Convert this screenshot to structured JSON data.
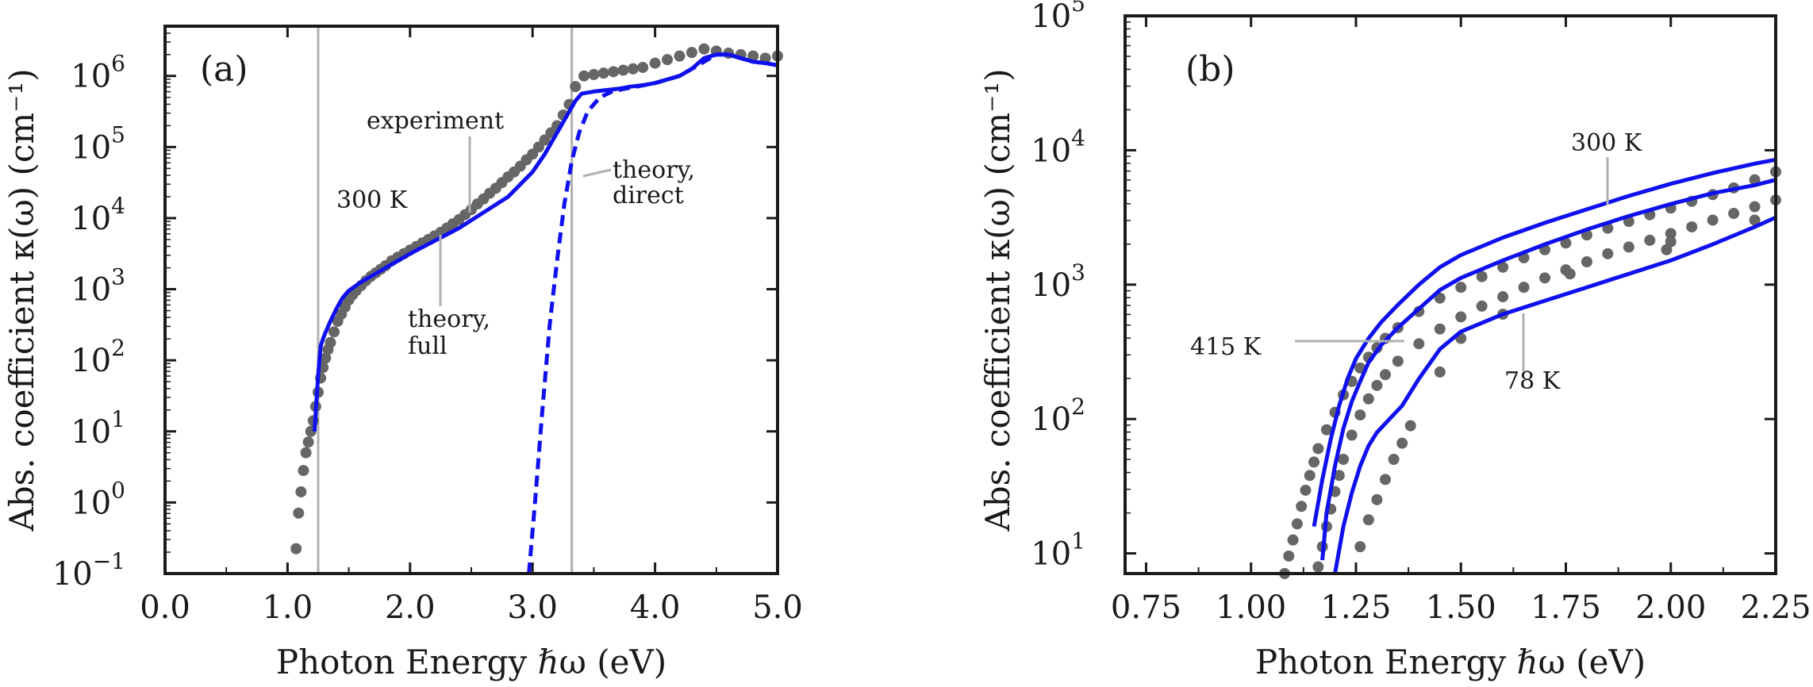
{
  "chart_data": [
    {
      "panel": "(a)",
      "type": "line",
      "xlabel": "Photon Energy ℏω (eV)",
      "ylabel": "Abs. coefficient κ(ω) (cm⁻¹)",
      "xlim": [
        0.0,
        5.0
      ],
      "ylim_log10": [
        -1,
        6.7
      ],
      "x_ticks": [
        "0.0",
        "1.0",
        "2.0",
        "3.0",
        "4.0",
        "5.0"
      ],
      "x_tick_values": [
        0,
        1,
        2,
        3,
        4,
        5
      ],
      "y_tick_exponents": [
        -1,
        0,
        1,
        2,
        3,
        4,
        5,
        6
      ],
      "vlines": [
        1.25,
        3.32
      ],
      "series": [
        {
          "name": "experiment",
          "style": "markers",
          "color": "#666666",
          "x": [
            1.07,
            1.09,
            1.11,
            1.13,
            1.15,
            1.17,
            1.19,
            1.21,
            1.23,
            1.25,
            1.27,
            1.29,
            1.31,
            1.33,
            1.35,
            1.38,
            1.41,
            1.44,
            1.47,
            1.5,
            1.53,
            1.56,
            1.6,
            1.64,
            1.68,
            1.72,
            1.76,
            1.8,
            1.85,
            1.9,
            1.95,
            2.0,
            2.05,
            2.1,
            2.15,
            2.2,
            2.25,
            2.3,
            2.35,
            2.4,
            2.45,
            2.5,
            2.55,
            2.6,
            2.65,
            2.7,
            2.75,
            2.8,
            2.85,
            2.9,
            2.95,
            3.0,
            3.05,
            3.1,
            3.15,
            3.2,
            3.25,
            3.3,
            3.35,
            3.42,
            3.5,
            3.58,
            3.66,
            3.74,
            3.82,
            3.9,
            4.0,
            4.1,
            4.2,
            4.3,
            4.4,
            4.5,
            4.6,
            4.7,
            4.8,
            4.9,
            5.0
          ],
          "log10_values": [
            -0.65,
            -0.15,
            0.15,
            0.45,
            0.7,
            0.85,
            1.0,
            1.15,
            1.35,
            1.55,
            1.75,
            1.9,
            2.03,
            2.15,
            2.25,
            2.4,
            2.55,
            2.65,
            2.75,
            2.85,
            2.92,
            2.98,
            3.05,
            3.12,
            3.18,
            3.23,
            3.28,
            3.33,
            3.4,
            3.45,
            3.5,
            3.55,
            3.6,
            3.65,
            3.7,
            3.75,
            3.8,
            3.86,
            3.92,
            3.98,
            4.05,
            4.12,
            4.2,
            4.27,
            4.35,
            4.42,
            4.5,
            4.58,
            4.65,
            4.73,
            4.82,
            4.9,
            5.0,
            5.1,
            5.2,
            5.3,
            5.45,
            5.6,
            5.85,
            6.0,
            6.02,
            6.04,
            6.06,
            6.08,
            6.1,
            6.12,
            6.18,
            6.23,
            6.28,
            6.33,
            6.38,
            6.35,
            6.32,
            6.3,
            6.28,
            6.25,
            6.28
          ]
        },
        {
          "name": "theory, full",
          "style": "solid",
          "color": "#1010ee",
          "x": [
            1.22,
            1.25,
            1.27,
            1.3,
            1.35,
            1.4,
            1.45,
            1.5,
            1.55,
            1.6,
            1.7,
            1.8,
            2.0,
            2.2,
            2.4,
            2.6,
            2.8,
            3.0,
            3.1,
            3.2,
            3.3,
            3.35,
            3.4,
            3.5,
            3.6,
            3.7,
            3.8,
            3.9,
            4.0,
            4.1,
            4.2,
            4.3,
            4.4,
            4.5,
            4.6,
            4.7,
            4.8,
            4.9,
            5.0
          ],
          "log10_values": [
            1.0,
            1.8,
            2.2,
            2.35,
            2.55,
            2.73,
            2.88,
            2.98,
            3.04,
            3.1,
            3.2,
            3.3,
            3.5,
            3.68,
            3.86,
            4.08,
            4.3,
            4.65,
            4.9,
            5.2,
            5.5,
            5.65,
            5.75,
            5.78,
            5.8,
            5.82,
            5.85,
            5.87,
            5.9,
            5.95,
            6.0,
            6.1,
            6.25,
            6.3,
            6.3,
            6.25,
            6.2,
            6.18,
            6.15
          ]
        },
        {
          "name": "theory, direct",
          "style": "dashed",
          "color": "#1010ee",
          "x": [
            2.97,
            3.02,
            3.08,
            3.14,
            3.2,
            3.26,
            3.32,
            3.38,
            3.45,
            3.55,
            3.65,
            3.75,
            3.85,
            4.0,
            4.1,
            4.2,
            4.3,
            4.4,
            4.5,
            4.6,
            4.7,
            4.8,
            4.9,
            5.0
          ],
          "log10_values": [
            -1.0,
            0.0,
            1.3,
            2.5,
            3.4,
            4.2,
            4.8,
            5.2,
            5.5,
            5.7,
            5.78,
            5.82,
            5.85,
            5.9,
            5.95,
            6.0,
            6.1,
            6.2,
            6.3,
            6.3,
            6.25,
            6.2,
            6.18,
            6.15
          ]
        }
      ],
      "annotations": [
        {
          "text": "experiment"
        },
        {
          "text": "300 K"
        },
        {
          "text": "theory,",
          "text2": "full"
        },
        {
          "text": "theory,",
          "text2": "direct"
        }
      ]
    },
    {
      "panel": "(b)",
      "type": "line",
      "xlabel": "Photon Energy ℏω (eV)",
      "ylabel": "Abs. coefficient κ(ω) (cm⁻¹)",
      "xlim": [
        0.7,
        2.25
      ],
      "ylim_log10": [
        0.85,
        5.0
      ],
      "x_ticks": [
        "0.75",
        "1.00",
        "1.25",
        "1.50",
        "1.75",
        "2.00",
        "2.25"
      ],
      "x_tick_values": [
        0.75,
        1.0,
        1.25,
        1.5,
        1.75,
        2.0,
        2.25
      ],
      "y_tick_exponents": [
        1,
        2,
        3,
        4,
        5
      ],
      "series": [
        {
          "name": "415 K experiment",
          "style": "markers",
          "color": "#666666",
          "x": [
            1.08,
            1.09,
            1.1,
            1.11,
            1.12,
            1.13,
            1.14,
            1.15,
            1.16,
            1.18,
            1.2,
            1.22,
            1.24,
            1.26,
            1.28,
            1.3,
            1.32,
            1.35,
            1.4,
            1.45,
            1.5,
            1.55,
            1.6,
            1.65,
            1.7,
            1.75,
            1.8,
            1.85,
            1.9,
            1.95,
            2.0,
            2.05,
            2.1,
            2.15,
            2.2,
            2.25
          ],
          "log10_values": [
            0.85,
            0.98,
            1.1,
            1.22,
            1.35,
            1.47,
            1.58,
            1.68,
            1.78,
            1.92,
            2.05,
            2.18,
            2.28,
            2.38,
            2.46,
            2.53,
            2.6,
            2.68,
            2.8,
            2.9,
            2.98,
            3.06,
            3.13,
            3.2,
            3.26,
            3.31,
            3.37,
            3.42,
            3.47,
            3.52,
            3.57,
            3.62,
            3.67,
            3.72,
            3.78,
            3.84
          ]
        },
        {
          "name": "300 K experiment",
          "style": "markers",
          "color": "#666666",
          "x": [
            1.16,
            1.17,
            1.18,
            1.19,
            1.2,
            1.21,
            1.22,
            1.24,
            1.26,
            1.28,
            1.3,
            1.32,
            1.35,
            1.4,
            1.45,
            1.5,
            1.55,
            1.6,
            1.65,
            1.7,
            1.75,
            1.8,
            1.85,
            1.9,
            1.95,
            2.0,
            2.05,
            2.1,
            2.15,
            2.2,
            2.25
          ],
          "log10_values": [
            0.9,
            1.05,
            1.2,
            1.33,
            1.46,
            1.58,
            1.7,
            1.88,
            2.03,
            2.15,
            2.25,
            2.33,
            2.43,
            2.56,
            2.67,
            2.76,
            2.84,
            2.91,
            2.98,
            3.05,
            3.11,
            3.17,
            3.23,
            3.28,
            3.33,
            3.38,
            3.43,
            3.48,
            3.53,
            3.58,
            3.63
          ]
        },
        {
          "name": "78 K experiment",
          "style": "markers",
          "color": "#666666",
          "x": [
            1.26,
            1.28,
            1.3,
            1.32,
            1.34,
            1.36,
            1.38,
            1.45,
            1.5,
            1.6,
            1.76,
            1.99,
            2.0,
            2.2
          ],
          "log10_values": [
            1.05,
            1.25,
            1.4,
            1.55,
            1.7,
            1.82,
            1.95,
            2.35,
            2.6,
            2.78,
            3.08,
            3.26,
            3.32,
            3.48
          ]
        },
        {
          "name": "415 K",
          "style": "solid",
          "color": "#1010ee",
          "x": [
            1.15,
            1.17,
            1.19,
            1.21,
            1.23,
            1.25,
            1.28,
            1.31,
            1.35,
            1.4,
            1.45,
            1.5,
            1.6,
            1.7,
            1.8,
            1.9,
            2.0,
            2.1,
            2.2,
            2.25
          ],
          "log10_values": [
            1.2,
            1.55,
            1.85,
            2.1,
            2.3,
            2.45,
            2.6,
            2.72,
            2.85,
            3.0,
            3.13,
            3.22,
            3.35,
            3.46,
            3.56,
            3.66,
            3.75,
            3.83,
            3.9,
            3.93
          ]
        },
        {
          "name": "300 K",
          "style": "solid",
          "color": "#1010ee",
          "x": [
            1.17,
            1.18,
            1.2,
            1.22,
            1.24,
            1.26,
            1.28,
            1.31,
            1.35,
            1.4,
            1.45,
            1.5,
            1.6,
            1.7,
            1.8,
            1.9,
            2.0,
            2.1,
            2.2,
            2.25
          ],
          "log10_values": [
            0.95,
            1.3,
            1.65,
            1.93,
            2.13,
            2.28,
            2.42,
            2.55,
            2.68,
            2.82,
            2.96,
            3.05,
            3.18,
            3.3,
            3.41,
            3.51,
            3.6,
            3.68,
            3.74,
            3.78
          ]
        },
        {
          "name": "78 K",
          "style": "solid",
          "color": "#1010ee",
          "x": [
            1.2,
            1.22,
            1.24,
            1.26,
            1.28,
            1.3,
            1.33,
            1.36,
            1.4,
            1.45,
            1.5,
            1.6,
            1.7,
            1.8,
            1.9,
            2.0,
            2.1,
            2.2,
            2.25
          ],
          "log10_values": [
            0.85,
            1.2,
            1.45,
            1.65,
            1.8,
            1.9,
            2.0,
            2.1,
            2.3,
            2.52,
            2.65,
            2.78,
            2.88,
            2.98,
            3.08,
            3.18,
            3.3,
            3.43,
            3.5
          ]
        }
      ],
      "annotations": [
        {
          "text": "300 K"
        },
        {
          "text": "415 K"
        },
        {
          "text": "78 K"
        }
      ]
    }
  ]
}
